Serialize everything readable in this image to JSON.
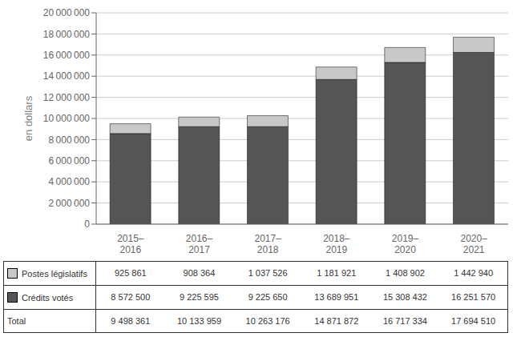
{
  "chart_data": {
    "type": "bar",
    "stacked": true,
    "grid": true,
    "y_label": "en dollars",
    "categories": [
      "2015–\n2016",
      "2016–\n2017",
      "2017–\n2018",
      "2018–\n2019",
      "2019–\n2020",
      "2020–\n2021"
    ],
    "series": [
      {
        "name": "Crédits votés",
        "color": "#555555",
        "values": [
          8572500,
          9225595,
          9225650,
          13689951,
          15308432,
          16251570
        ],
        "value_labels": [
          "8 572 500",
          "9 225 595",
          "9 225 650",
          "13 689 951",
          "15 308 432",
          "16 251 570"
        ]
      },
      {
        "name": "Postes législatifs",
        "color": "#c8c8c8",
        "values": [
          925861,
          908364,
          1037526,
          1181921,
          1408902,
          1442940
        ],
        "value_labels": [
          "925 861",
          "908 364",
          "1 037 526",
          "1 181 921",
          "1 408 902",
          "1 442 940"
        ]
      }
    ],
    "totals": {
      "name": "Total",
      "value_labels": [
        "9 498 361",
        "10 133 959",
        "10 263 176",
        "14 871 872",
        "16 717 334",
        "17 694 510"
      ]
    },
    "ylim": [
      0,
      20000000
    ],
    "yticks": [
      0,
      {
        "value": 2000000,
        "label": "2 000 000"
      },
      {
        "value": 4000000,
        "label": "4 000 000"
      },
      {
        "value": 6000000,
        "label": "6 000 000"
      },
      {
        "value": 8000000,
        "label": "8 000 000"
      },
      {
        "value": 10000000,
        "label": "10 000 000"
      },
      {
        "value": 12000000,
        "label": "12 000 000"
      },
      {
        "value": 14000000,
        "label": "14 000 000"
      },
      {
        "value": 16000000,
        "label": "16 000 000"
      },
      {
        "value": 18000000,
        "label": "18 000 000"
      },
      {
        "value": 20000000,
        "label": "20 000 000"
      }
    ]
  }
}
